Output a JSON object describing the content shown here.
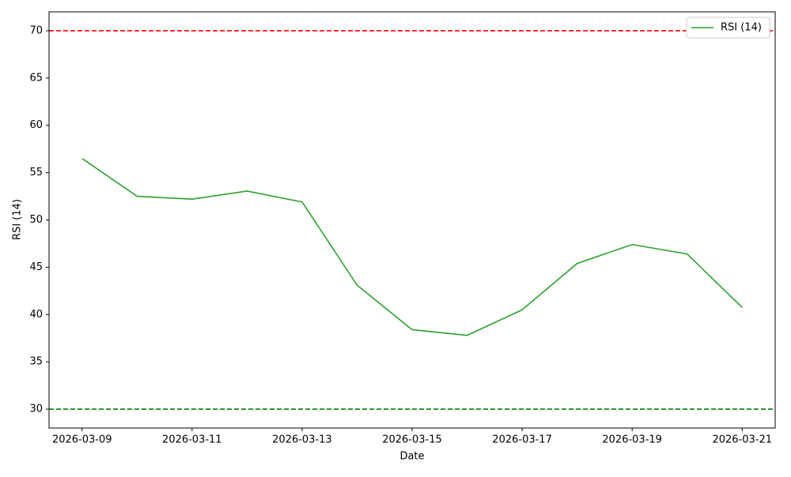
{
  "chart_data": {
    "type": "line",
    "x": [
      "2026-03-09",
      "2026-03-10",
      "2026-03-11",
      "2026-03-12",
      "2026-03-13",
      "2026-03-14",
      "2026-03-15",
      "2026-03-16",
      "2026-03-17",
      "2026-03-18",
      "2026-03-19",
      "2026-03-20",
      "2026-03-21"
    ],
    "series": [
      {
        "name": "RSI (14)",
        "color": "#2ca02c",
        "values": [
          56.5,
          52.5,
          52.2,
          53.05,
          51.9,
          43.1,
          38.4,
          37.8,
          40.5,
          45.4,
          47.4,
          46.4,
          40.75
        ]
      }
    ],
    "hlines": [
      {
        "value": 70,
        "color": "#ff0000"
      },
      {
        "value": 30,
        "color": "#008000"
      }
    ],
    "xlabel": "Date",
    "ylabel": "RSI (14)",
    "ylim": [
      28,
      72
    ],
    "yticks": [
      30,
      35,
      40,
      45,
      50,
      55,
      60,
      65,
      70
    ],
    "xticks": [
      "2026-03-09",
      "2026-03-11",
      "2026-03-13",
      "2026-03-15",
      "2026-03-17",
      "2026-03-19",
      "2026-03-21"
    ],
    "legend": "upper right",
    "grid": false
  }
}
